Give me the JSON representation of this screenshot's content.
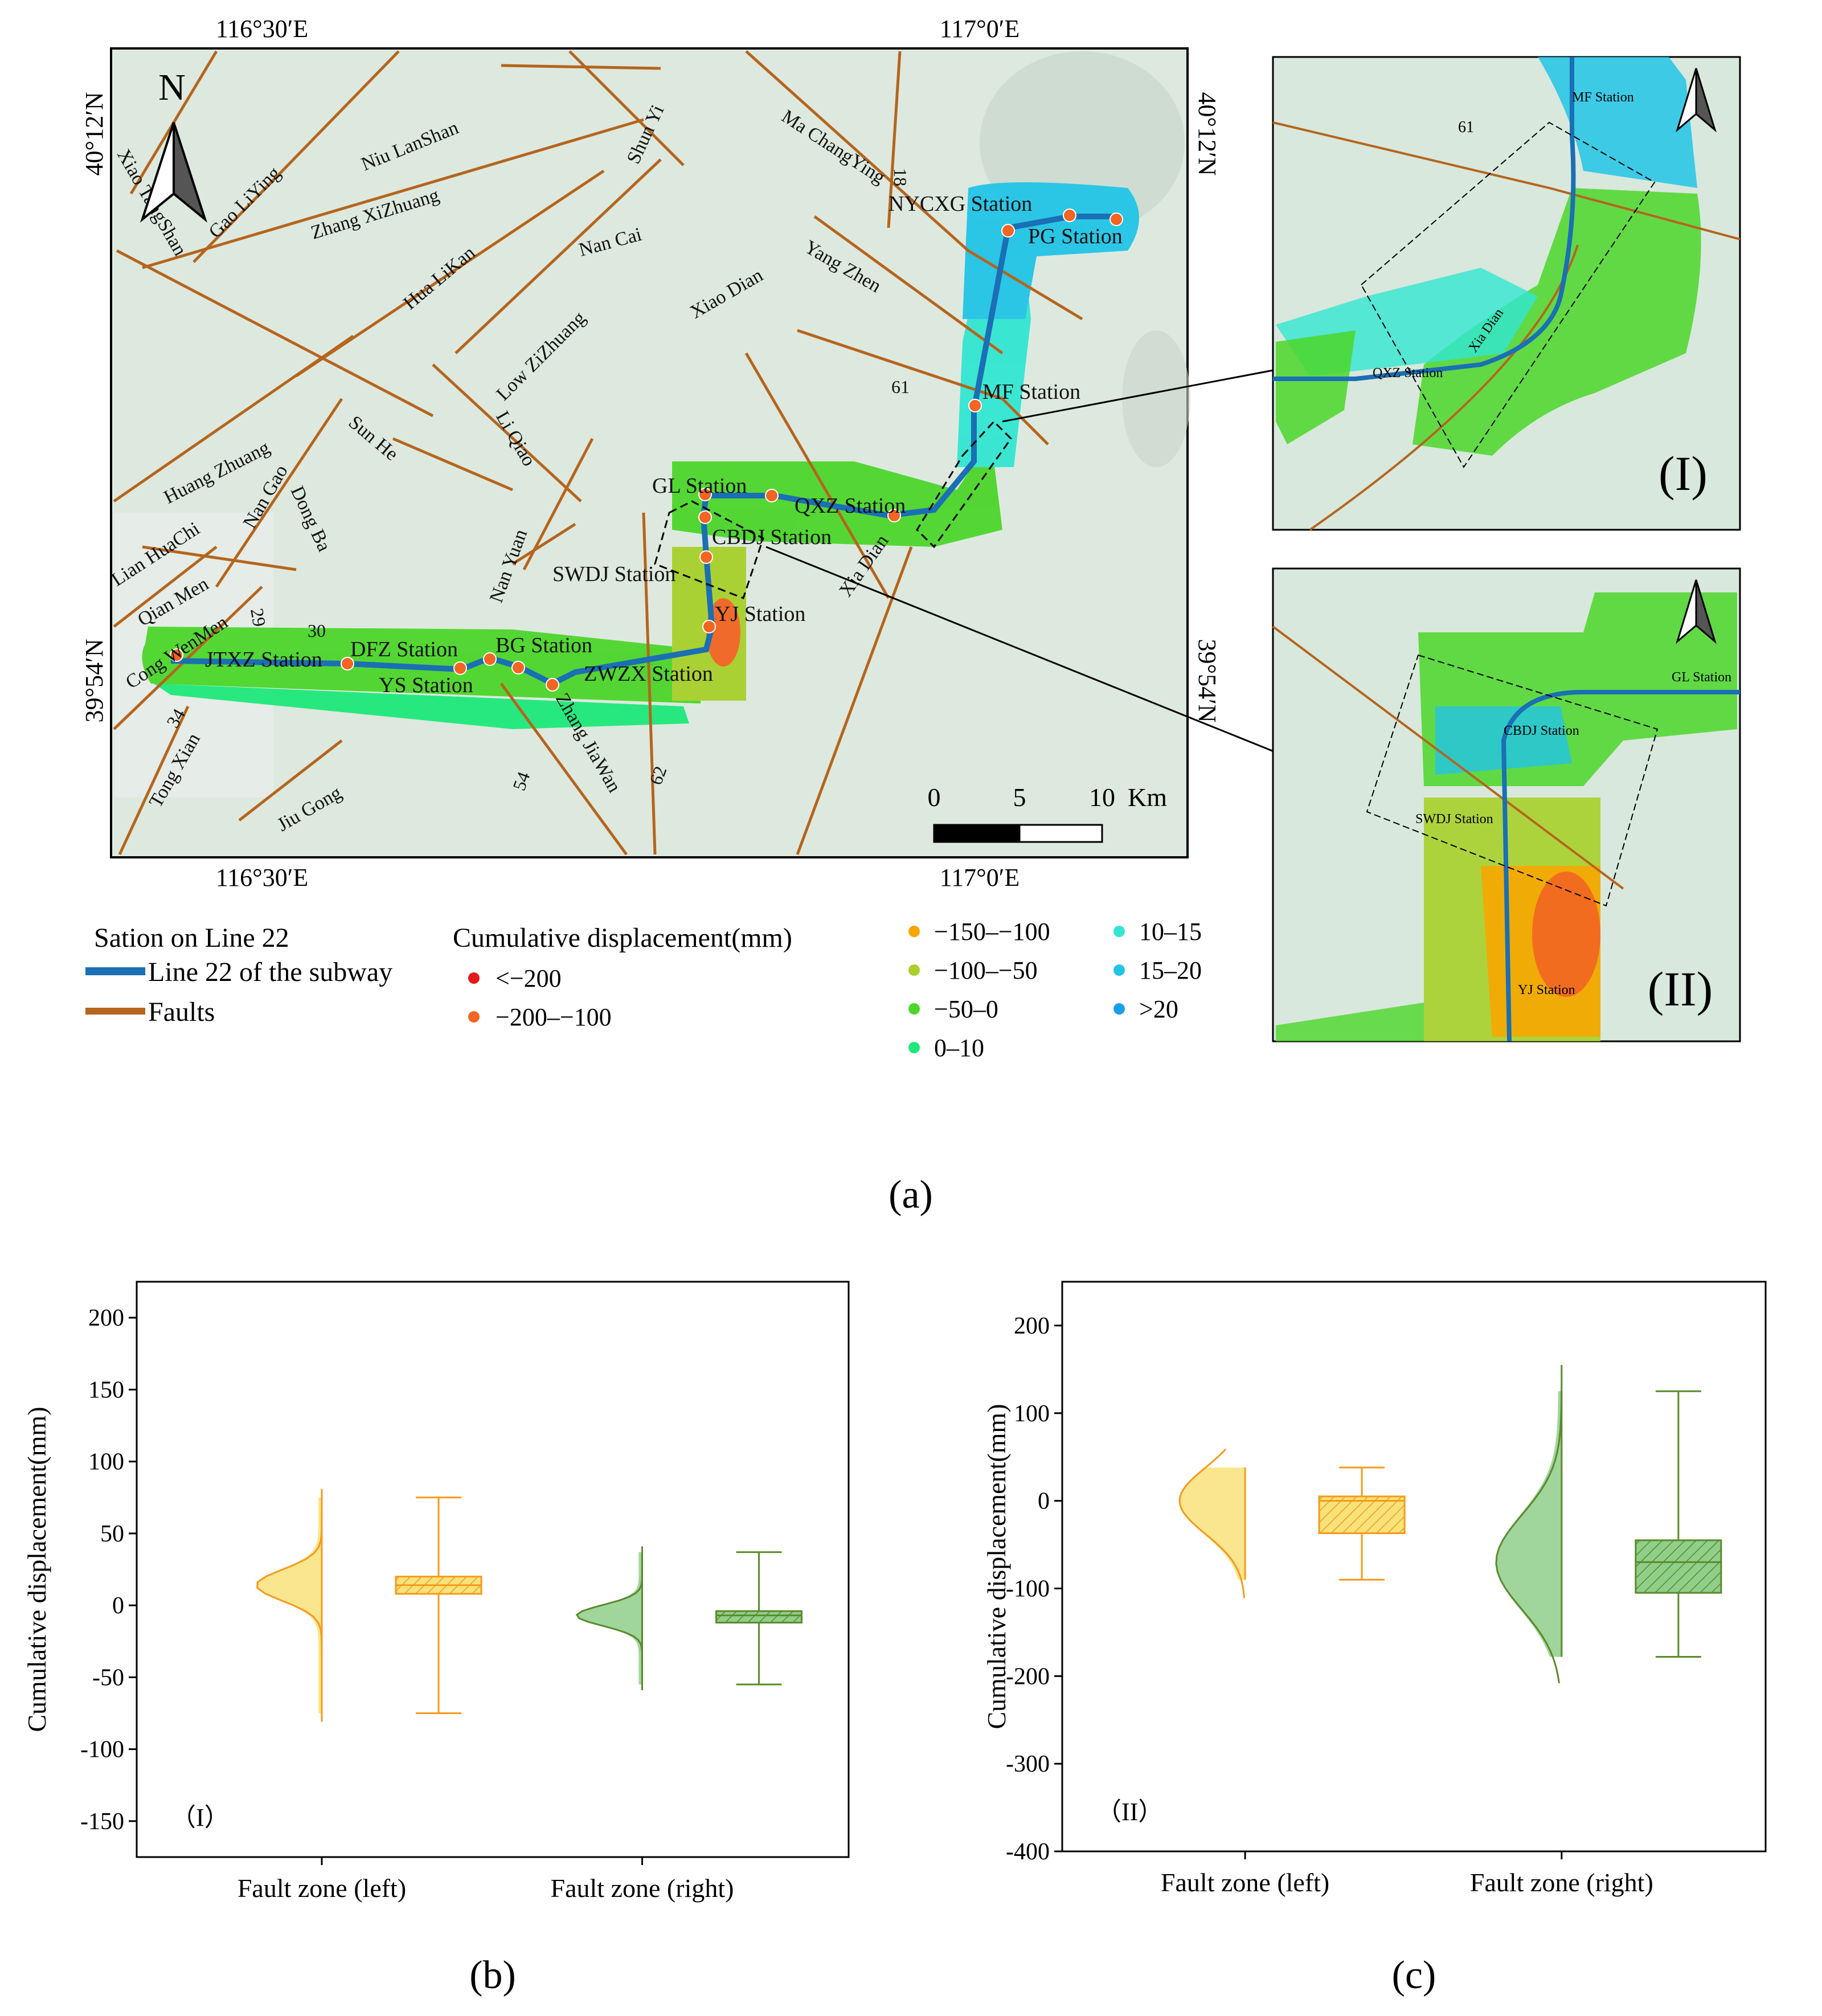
{
  "panel_a": {
    "caption": "(a)",
    "coords": {
      "lon_left": "116°30′E",
      "lon_right": "117°0′E",
      "lat_top": "40°12′N",
      "lat_bottom": "39°54′N"
    },
    "north": "N",
    "scale": {
      "ticks": [
        "0",
        "5",
        "10"
      ],
      "unit": "Km"
    },
    "stations": [
      "NYCXG Station",
      "PG Station",
      "MF Station",
      "GL Station",
      "QXZ Station",
      "CBDJ Station",
      "SWDJ Station",
      "YJ Station",
      "JTXZ Station",
      "DFZ Station",
      "YS Station",
      "BG Station",
      "ZWZX Station"
    ],
    "faults": [
      "Xiao TangShan",
      "Gao LiYing",
      "Niu LanShan",
      "Zhang XiZhuang",
      "Shun Yi",
      "Ma ChangYing",
      "Nan Cai",
      "Yang Zhen",
      "Hua LiKan",
      "Xiao Dian",
      "Low ZiZhuang",
      "Li Qiao",
      "Sun He",
      "Huang Zhuang",
      "Nan Gao",
      "Dong Ba",
      "Lian HuaChi",
      "Qian Men",
      "Cong WenMen",
      "Nan Yuan",
      "Tong Xian",
      "Jiu Gong",
      "Zhang JiaWan",
      "Xia Dian"
    ],
    "fault_numbers": [
      "18",
      "61",
      "29",
      "30",
      "34",
      "54",
      "62"
    ],
    "inset_I": {
      "label": "(I)",
      "stations": [
        "MF Station",
        "QXZ Station"
      ],
      "fault_name": "Xia Dian",
      "fault_number": "61"
    },
    "inset_II": {
      "label": "(II)",
      "stations": [
        "GL Station",
        "CBDJ Station",
        "SWDJ Station",
        "YJ Station"
      ]
    },
    "legend": {
      "station_title": "Sation on Line 22",
      "line_label": "Line 22 of the subway",
      "fault_label": "Faults",
      "disp_title": "Cumulative displacement(mm)",
      "classes": [
        {
          "label": "<−200",
          "color": "#e31a1c"
        },
        {
          "label": "−200–−100",
          "color": "#f26522"
        },
        {
          "label": "−150–−100",
          "color": "#f7a600"
        },
        {
          "label": "−100–−50",
          "color": "#a8d02a"
        },
        {
          "label": "−50–0",
          "color": "#4cd62a"
        },
        {
          "label": "0–10",
          "color": "#1ee87a"
        },
        {
          "label": "10–15",
          "color": "#32e6d2"
        },
        {
          "label": "15–20",
          "color": "#22c4e6"
        },
        {
          "label": ">20",
          "color": "#1b9ee6"
        }
      ],
      "line_color": "#1a6fb5",
      "fault_color": "#b5651d"
    }
  },
  "chart_data": [
    {
      "type": "box",
      "caption": "(b)",
      "panel_label": "（I）",
      "ylabel": "Cumulative displacement(mm)",
      "ylim": [
        -175,
        225
      ],
      "yticks": [
        -150,
        -100,
        -50,
        0,
        50,
        100,
        150,
        200
      ],
      "categories": [
        "Fault zone (left)",
        "Fault zone (right)"
      ],
      "boxes": [
        {
          "category": "Fault zone (left)",
          "min": -75,
          "q1": 8,
          "median": 14,
          "q3": 20,
          "max": 75,
          "color": "#f59a1b",
          "fill": "#f8e27a"
        },
        {
          "category": "Fault zone (right)",
          "min": -55,
          "q1": -12,
          "median": -7,
          "q3": -4,
          "max": 37,
          "color": "#5a8a2b",
          "fill": "#8fcf8a"
        }
      ]
    },
    {
      "type": "box",
      "caption": "(c)",
      "panel_label": "（II）",
      "ylabel": "Cumulative displacement(mm)",
      "ylim": [
        -400,
        250
      ],
      "yticks": [
        -400,
        -300,
        -200,
        -100,
        0,
        100,
        200
      ],
      "categories": [
        "Fault zone (left)",
        "Fault zone (right)"
      ],
      "boxes": [
        {
          "category": "Fault zone (left)",
          "min": -90,
          "q1": -37,
          "median": 0,
          "q3": 5,
          "max": 38,
          "color": "#f59a1b",
          "fill": "#f8e27a"
        },
        {
          "category": "Fault zone (right)",
          "min": -178,
          "q1": -105,
          "median": -70,
          "q3": -45,
          "max": 125,
          "color": "#5a8a2b",
          "fill": "#8fcf8a"
        }
      ]
    }
  ]
}
